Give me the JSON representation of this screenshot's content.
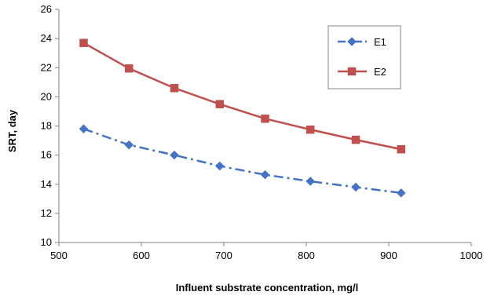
{
  "chart_data": {
    "type": "line",
    "title": "",
    "xlabel": "Influent substrate concentration, mg/l",
    "ylabel": "SRT, day",
    "xlim": [
      500,
      1000
    ],
    "ylim": [
      10,
      26
    ],
    "xticks": [
      500,
      600,
      700,
      800,
      900,
      1000
    ],
    "yticks": [
      10,
      12,
      14,
      16,
      18,
      20,
      22,
      24,
      26
    ],
    "grid": false,
    "legend_position": "top-right",
    "x": [
      530,
      585,
      640,
      695,
      750,
      805,
      860,
      915
    ],
    "series": [
      {
        "name": "E1",
        "values": [
          17.8,
          16.7,
          16.0,
          15.25,
          14.65,
          14.2,
          13.8,
          13.4
        ],
        "color": "#4472C4",
        "marker": "diamond",
        "line_style": "dash-dot"
      },
      {
        "name": "E2",
        "values": [
          23.7,
          21.95,
          20.6,
          19.5,
          18.5,
          17.75,
          17.05,
          16.4
        ],
        "color": "#C0504D",
        "marker": "square",
        "line_style": "solid"
      }
    ]
  }
}
